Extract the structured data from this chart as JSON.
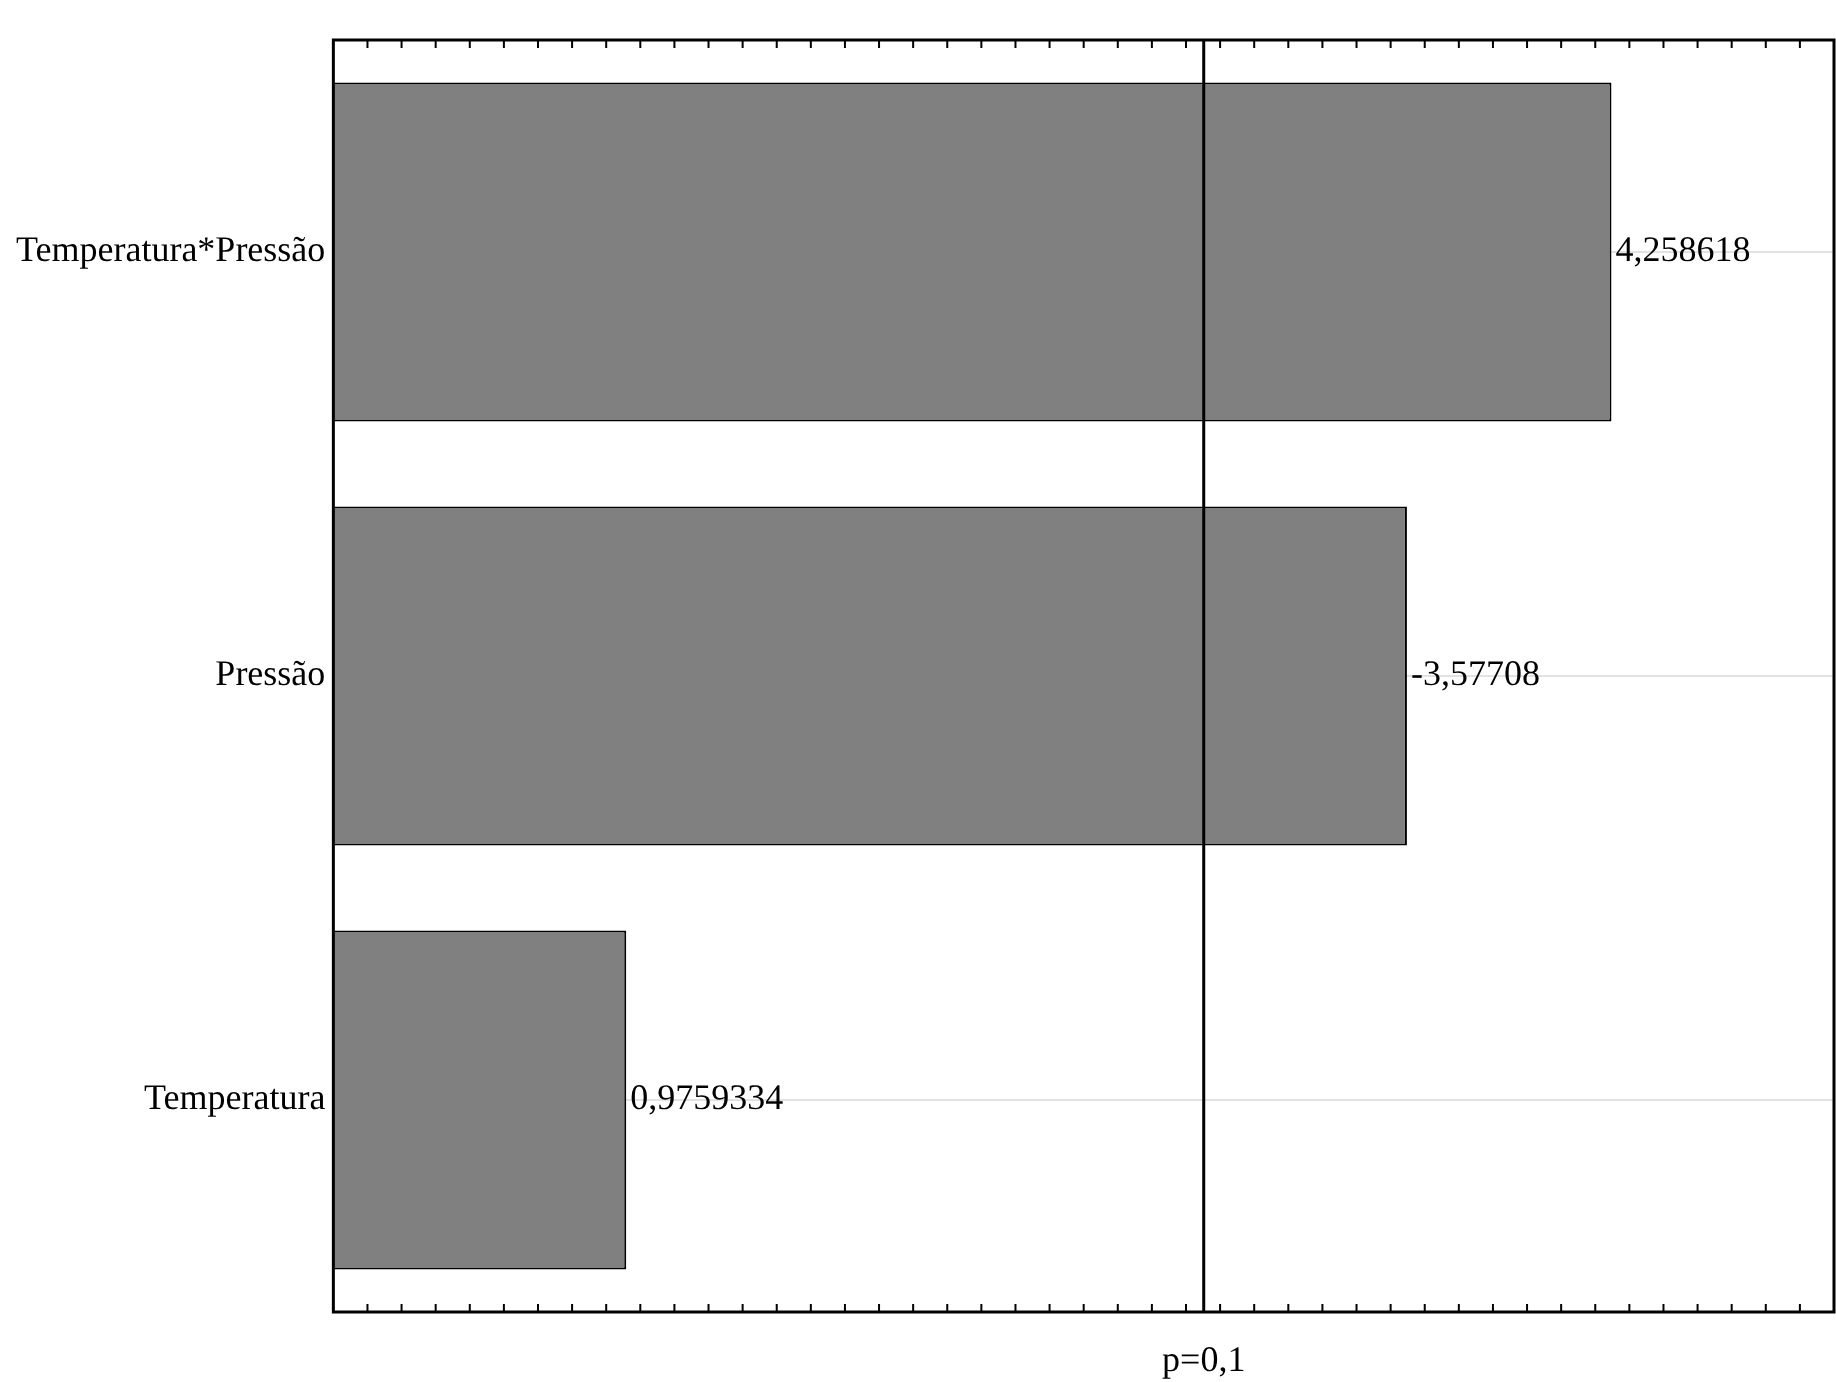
{
  "chart_data": {
    "type": "bar",
    "orientation": "horizontal",
    "categories": [
      "Temperatura*Pressão",
      "Pressão",
      "Temperatura"
    ],
    "values": [
      4.258618,
      3.57708,
      0.9759334
    ],
    "value_labels": [
      "4,258618",
      "-3,57708",
      "0,9759334"
    ],
    "color": "#808080",
    "ref_lines": [
      {
        "axis": "x",
        "value": 2.9,
        "color": "#000000"
      }
    ],
    "annotations": [
      "p=0,1"
    ],
    "grid": "y",
    "legend": false
  }
}
